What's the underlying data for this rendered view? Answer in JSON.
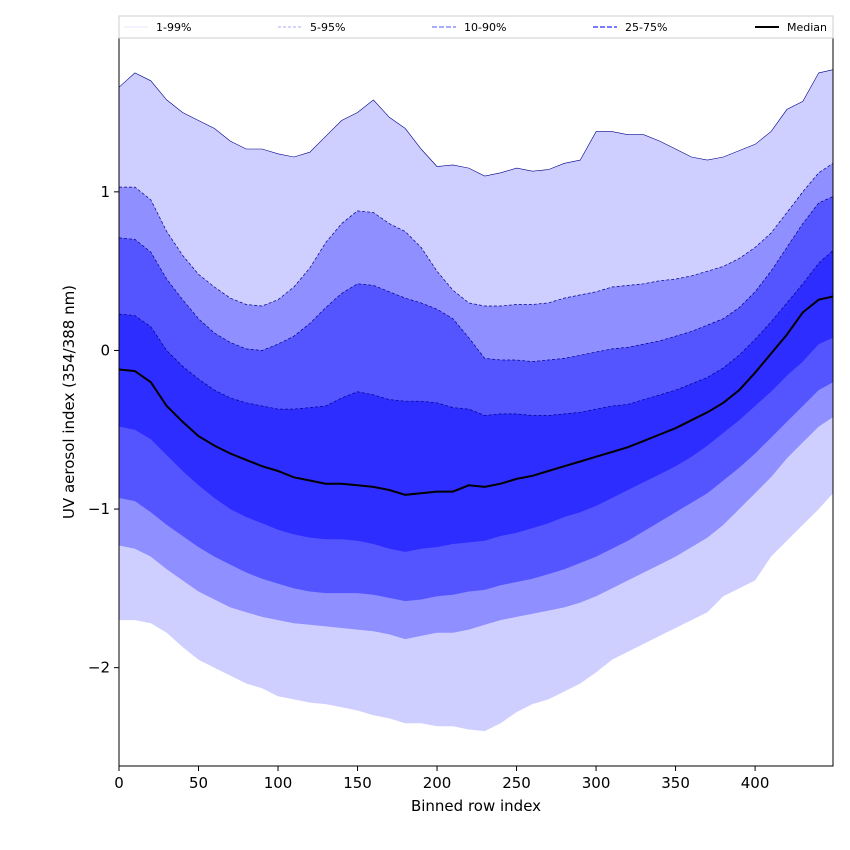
{
  "colors": {
    "band_1_99": "#cfcfff",
    "band_5_95": "#8f8fff",
    "band_10_90": "#5555ff",
    "band_25_75": "#2d2dff",
    "median": "#000000",
    "edge": "#00008b"
  },
  "chart_data": {
    "type": "area",
    "title": "",
    "xlabel": "Binned row index",
    "ylabel": "UV aerosol index (354/388 nm)",
    "xlim": [
      0,
      449
    ],
    "ylim": [
      -2.62,
      1.97
    ],
    "xticks": [
      0,
      50,
      100,
      150,
      200,
      250,
      300,
      350,
      400
    ],
    "yticks": [
      -2,
      -1,
      0,
      1
    ],
    "ytick_labels": [
      "−2",
      "−1",
      "0",
      "1"
    ],
    "grid": false,
    "legend": {
      "placement": "top",
      "entries": [
        "1-99%",
        "5-95%",
        "10-90%",
        "25-75%",
        "Median"
      ]
    },
    "x": [
      0,
      10,
      20,
      30,
      40,
      50,
      60,
      70,
      80,
      90,
      100,
      110,
      120,
      130,
      140,
      150,
      160,
      170,
      180,
      190,
      200,
      210,
      220,
      230,
      240,
      250,
      260,
      270,
      280,
      290,
      300,
      310,
      320,
      330,
      340,
      350,
      360,
      370,
      380,
      390,
      400,
      410,
      420,
      430,
      440,
      449
    ],
    "series": [
      {
        "name": "1-99%",
        "upper": [
          1.66,
          1.75,
          1.7,
          1.58,
          1.5,
          1.45,
          1.4,
          1.32,
          1.27,
          1.27,
          1.24,
          1.22,
          1.25,
          1.35,
          1.45,
          1.5,
          1.58,
          1.47,
          1.4,
          1.27,
          1.16,
          1.17,
          1.15,
          1.1,
          1.12,
          1.15,
          1.13,
          1.14,
          1.18,
          1.2,
          1.38,
          1.38,
          1.36,
          1.36,
          1.32,
          1.27,
          1.22,
          1.2,
          1.22,
          1.26,
          1.3,
          1.38,
          1.52,
          1.57,
          1.75,
          1.77
        ],
        "lower": [
          -1.7,
          -1.7,
          -1.72,
          -1.78,
          -1.87,
          -1.95,
          -2.0,
          -2.05,
          -2.1,
          -2.13,
          -2.18,
          -2.2,
          -2.22,
          -2.23,
          -2.25,
          -2.27,
          -2.3,
          -2.32,
          -2.35,
          -2.35,
          -2.37,
          -2.37,
          -2.39,
          -2.4,
          -2.35,
          -2.28,
          -2.23,
          -2.2,
          -2.15,
          -2.1,
          -2.03,
          -1.95,
          -1.9,
          -1.85,
          -1.8,
          -1.75,
          -1.7,
          -1.65,
          -1.55,
          -1.5,
          -1.45,
          -1.3,
          -1.2,
          -1.1,
          -1.0,
          -0.9
        ]
      },
      {
        "name": "5-95%",
        "upper": [
          1.03,
          1.03,
          0.95,
          0.75,
          0.6,
          0.48,
          0.4,
          0.33,
          0.29,
          0.28,
          0.32,
          0.4,
          0.52,
          0.68,
          0.8,
          0.88,
          0.87,
          0.8,
          0.75,
          0.65,
          0.5,
          0.38,
          0.3,
          0.28,
          0.28,
          0.29,
          0.29,
          0.3,
          0.33,
          0.35,
          0.37,
          0.4,
          0.41,
          0.42,
          0.44,
          0.45,
          0.47,
          0.5,
          0.53,
          0.58,
          0.65,
          0.74,
          0.87,
          1.0,
          1.12,
          1.18
        ],
        "lower": [
          -1.23,
          -1.25,
          -1.3,
          -1.38,
          -1.45,
          -1.52,
          -1.57,
          -1.62,
          -1.65,
          -1.68,
          -1.7,
          -1.72,
          -1.73,
          -1.74,
          -1.75,
          -1.76,
          -1.77,
          -1.79,
          -1.82,
          -1.8,
          -1.78,
          -1.78,
          -1.76,
          -1.73,
          -1.7,
          -1.68,
          -1.66,
          -1.64,
          -1.62,
          -1.59,
          -1.55,
          -1.5,
          -1.45,
          -1.4,
          -1.35,
          -1.3,
          -1.24,
          -1.18,
          -1.1,
          -1.0,
          -0.9,
          -0.8,
          -0.68,
          -0.58,
          -0.48,
          -0.42
        ]
      },
      {
        "name": "10-90%",
        "upper": [
          0.71,
          0.7,
          0.62,
          0.45,
          0.32,
          0.2,
          0.11,
          0.05,
          0.01,
          0.0,
          0.04,
          0.09,
          0.17,
          0.27,
          0.36,
          0.42,
          0.41,
          0.37,
          0.33,
          0.3,
          0.26,
          0.2,
          0.08,
          -0.05,
          -0.06,
          -0.06,
          -0.07,
          -0.06,
          -0.05,
          -0.03,
          -0.01,
          0.01,
          0.02,
          0.04,
          0.06,
          0.09,
          0.12,
          0.16,
          0.2,
          0.27,
          0.37,
          0.5,
          0.65,
          0.8,
          0.93,
          0.97
        ],
        "lower": [
          -0.93,
          -0.95,
          -1.02,
          -1.1,
          -1.17,
          -1.24,
          -1.3,
          -1.35,
          -1.4,
          -1.44,
          -1.47,
          -1.5,
          -1.52,
          -1.53,
          -1.53,
          -1.53,
          -1.54,
          -1.56,
          -1.58,
          -1.57,
          -1.55,
          -1.54,
          -1.52,
          -1.51,
          -1.48,
          -1.46,
          -1.44,
          -1.41,
          -1.38,
          -1.34,
          -1.3,
          -1.25,
          -1.2,
          -1.14,
          -1.08,
          -1.02,
          -0.96,
          -0.9,
          -0.82,
          -0.74,
          -0.65,
          -0.55,
          -0.45,
          -0.35,
          -0.25,
          -0.2
        ]
      },
      {
        "name": "25-75%",
        "upper": [
          0.23,
          0.22,
          0.15,
          0.0,
          -0.1,
          -0.18,
          -0.25,
          -0.3,
          -0.33,
          -0.35,
          -0.37,
          -0.37,
          -0.36,
          -0.35,
          -0.3,
          -0.26,
          -0.28,
          -0.31,
          -0.32,
          -0.32,
          -0.33,
          -0.36,
          -0.37,
          -0.41,
          -0.4,
          -0.4,
          -0.41,
          -0.41,
          -0.4,
          -0.39,
          -0.37,
          -0.35,
          -0.34,
          -0.31,
          -0.28,
          -0.25,
          -0.21,
          -0.17,
          -0.11,
          -0.03,
          0.07,
          0.18,
          0.3,
          0.42,
          0.55,
          0.63
        ],
        "lower": [
          -0.48,
          -0.5,
          -0.56,
          -0.66,
          -0.76,
          -0.85,
          -0.93,
          -1.0,
          -1.05,
          -1.09,
          -1.13,
          -1.16,
          -1.18,
          -1.19,
          -1.19,
          -1.2,
          -1.22,
          -1.25,
          -1.27,
          -1.25,
          -1.24,
          -1.22,
          -1.21,
          -1.2,
          -1.17,
          -1.15,
          -1.12,
          -1.09,
          -1.05,
          -1.02,
          -0.98,
          -0.93,
          -0.88,
          -0.83,
          -0.78,
          -0.73,
          -0.67,
          -0.6,
          -0.52,
          -0.44,
          -0.35,
          -0.26,
          -0.16,
          -0.07,
          0.04,
          0.08
        ]
      },
      {
        "name": "Median",
        "values": [
          -0.12,
          -0.13,
          -0.2,
          -0.35,
          -0.45,
          -0.54,
          -0.6,
          -0.65,
          -0.69,
          -0.73,
          -0.76,
          -0.8,
          -0.82,
          -0.84,
          -0.84,
          -0.85,
          -0.86,
          -0.88,
          -0.91,
          -0.9,
          -0.89,
          -0.89,
          -0.85,
          -0.86,
          -0.84,
          -0.81,
          -0.79,
          -0.76,
          -0.73,
          -0.7,
          -0.67,
          -0.64,
          -0.61,
          -0.57,
          -0.53,
          -0.49,
          -0.44,
          -0.39,
          -0.33,
          -0.25,
          -0.14,
          -0.02,
          0.1,
          0.24,
          0.32,
          0.34
        ]
      }
    ]
  }
}
